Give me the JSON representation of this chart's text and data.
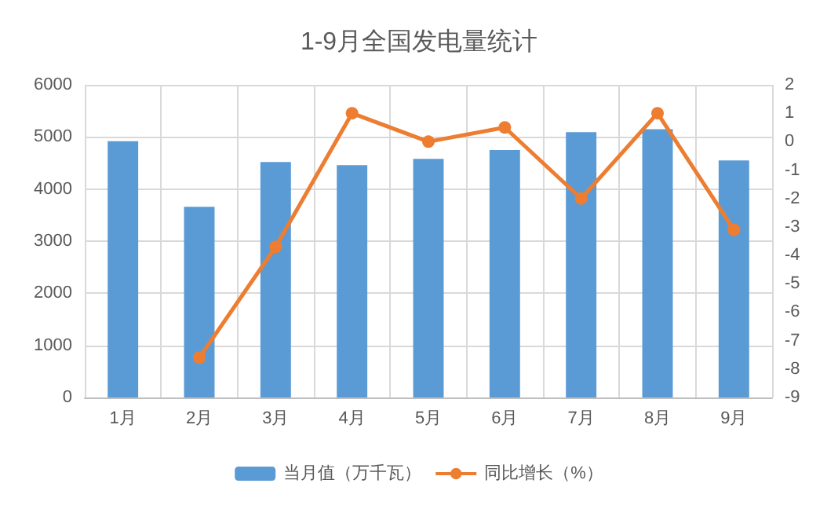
{
  "chart_data": {
    "type": "bar",
    "title": "1-9月全国发电量统计",
    "categories": [
      "1月",
      "2月",
      "3月",
      "4月",
      "5月",
      "6月",
      "7月",
      "8月",
      "9月"
    ],
    "series": [
      {
        "name": "当月值（万千瓦）",
        "color": "#5b9bd5",
        "values": [
          4920,
          3660,
          4520,
          4460,
          4580,
          4750,
          5090,
          5150,
          4550
        ]
      },
      {
        "name": "同比增长（%）",
        "type": "line",
        "axis": "y2",
        "color": "#ed7d31",
        "values": [
          null,
          -7.6,
          -3.7,
          1,
          0,
          0.5,
          -2,
          1,
          -3.1
        ]
      }
    ],
    "ylim": [
      0,
      6000
    ],
    "yticks": [
      0,
      1000,
      2000,
      3000,
      4000,
      5000,
      6000
    ],
    "y2lim": [
      -9,
      2
    ],
    "y2ticks": [
      -9,
      -8,
      -7,
      -6,
      -5,
      -4,
      -3,
      -2,
      -1,
      0,
      1,
      2
    ],
    "grid": true,
    "legend": "bottom",
    "marker": "circle"
  }
}
